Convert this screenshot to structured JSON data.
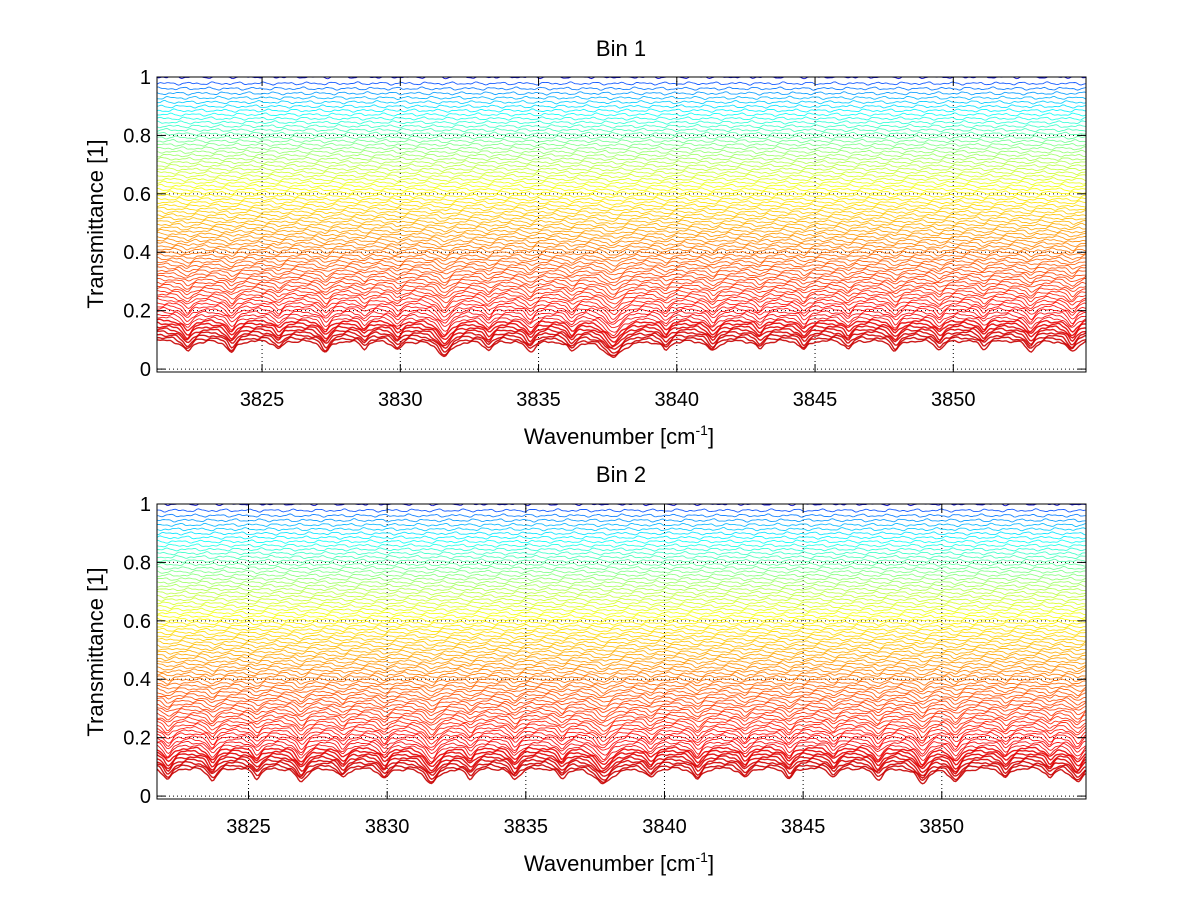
{
  "chart_data": [
    {
      "type": "line",
      "title": "Bin 1",
      "xlabel": "Wavenumber [cm",
      "xlabel_sup": "-1",
      "xlabel_end": "]",
      "ylabel": "Transmittance [1]",
      "xlim": [
        3821.2,
        3854.8
      ],
      "ylim": [
        -0.01,
        1.0
      ],
      "xticks": [
        3825,
        3830,
        3835,
        3840,
        3845,
        3850
      ],
      "xtick_labels": [
        "3825",
        "3830",
        "3835",
        "3840",
        "3845",
        "3850"
      ],
      "yticks": [
        0,
        0.2,
        0.4,
        0.6,
        0.8,
        1
      ],
      "ytick_labels": [
        "0",
        "0.2",
        "0.4",
        "0.6",
        "0.8",
        "1"
      ],
      "grid": true,
      "colormap": "jet (blue at transmittance ≈ 1, through cyan, green, yellow, to orange-red at ≈ 0)",
      "line_count": 80,
      "absorption_lines": [
        {
          "x": 3822.3,
          "depth": 0.55,
          "width": 0.18
        },
        {
          "x": 3823.9,
          "depth": 0.6,
          "width": 0.18
        },
        {
          "x": 3825.6,
          "depth": 0.4,
          "width": 0.16
        },
        {
          "x": 3827.3,
          "depth": 0.6,
          "width": 0.18
        },
        {
          "x": 3828.7,
          "depth": 0.35,
          "width": 0.15
        },
        {
          "x": 3829.9,
          "depth": 0.45,
          "width": 0.16
        },
        {
          "x": 3831.6,
          "depth": 0.9,
          "width": 0.25
        },
        {
          "x": 3833.2,
          "depth": 0.45,
          "width": 0.16
        },
        {
          "x": 3834.7,
          "depth": 0.55,
          "width": 0.18
        },
        {
          "x": 3836.2,
          "depth": 0.5,
          "width": 0.17
        },
        {
          "x": 3837.7,
          "depth": 1.0,
          "width": 0.32
        },
        {
          "x": 3839.6,
          "depth": 0.45,
          "width": 0.16
        },
        {
          "x": 3841.3,
          "depth": 0.55,
          "width": 0.18
        },
        {
          "x": 3843.0,
          "depth": 0.4,
          "width": 0.16
        },
        {
          "x": 3844.6,
          "depth": 0.45,
          "width": 0.16
        },
        {
          "x": 3846.2,
          "depth": 0.4,
          "width": 0.15
        },
        {
          "x": 3847.9,
          "depth": 0.5,
          "width": 0.17
        },
        {
          "x": 3849.5,
          "depth": 0.45,
          "width": 0.16
        },
        {
          "x": 3851.1,
          "depth": 0.4,
          "width": 0.15
        },
        {
          "x": 3852.8,
          "depth": 0.55,
          "width": 0.18
        },
        {
          "x": 3854.3,
          "depth": 0.6,
          "width": 0.18
        }
      ]
    },
    {
      "type": "line",
      "title": "Bin 2",
      "xlabel": "Wavenumber [cm",
      "xlabel_sup": "-1",
      "xlabel_end": "]",
      "ylabel": "Transmittance [1]",
      "xlim": [
        3821.7,
        3855.2
      ],
      "ylim": [
        -0.01,
        1.0
      ],
      "xticks": [
        3825,
        3830,
        3835,
        3840,
        3845,
        3850
      ],
      "xtick_labels": [
        "3825",
        "3830",
        "3835",
        "3840",
        "3845",
        "3850"
      ],
      "yticks": [
        0,
        0.2,
        0.4,
        0.6,
        0.8,
        1
      ],
      "ytick_labels": [
        "0",
        "0.2",
        "0.4",
        "0.6",
        "0.8",
        "1"
      ],
      "grid": true,
      "colormap": "jet (blue at transmittance ≈ 1, through cyan, green, yellow, to orange-red at ≈ 0)",
      "line_count": 80,
      "absorption_lines": [
        {
          "x": 3822.1,
          "depth": 0.6,
          "width": 0.18
        },
        {
          "x": 3823.7,
          "depth": 0.65,
          "width": 0.18
        },
        {
          "x": 3825.3,
          "depth": 0.5,
          "width": 0.17
        },
        {
          "x": 3826.9,
          "depth": 0.75,
          "width": 0.2
        },
        {
          "x": 3828.4,
          "depth": 0.5,
          "width": 0.17
        },
        {
          "x": 3829.9,
          "depth": 0.55,
          "width": 0.17
        },
        {
          "x": 3831.6,
          "depth": 0.9,
          "width": 0.25
        },
        {
          "x": 3833.0,
          "depth": 0.5,
          "width": 0.17
        },
        {
          "x": 3834.6,
          "depth": 0.6,
          "width": 0.18
        },
        {
          "x": 3836.3,
          "depth": 0.5,
          "width": 0.17
        },
        {
          "x": 3837.8,
          "depth": 0.95,
          "width": 0.3
        },
        {
          "x": 3839.5,
          "depth": 0.5,
          "width": 0.17
        },
        {
          "x": 3841.2,
          "depth": 0.6,
          "width": 0.18
        },
        {
          "x": 3842.9,
          "depth": 0.5,
          "width": 0.17
        },
        {
          "x": 3844.5,
          "depth": 0.55,
          "width": 0.17
        },
        {
          "x": 3846.1,
          "depth": 0.45,
          "width": 0.16
        },
        {
          "x": 3847.7,
          "depth": 0.6,
          "width": 0.18
        },
        {
          "x": 3849.3,
          "depth": 0.85,
          "width": 0.22
        },
        {
          "x": 3850.5,
          "depth": 0.75,
          "width": 0.2
        },
        {
          "x": 3852.3,
          "depth": 0.5,
          "width": 0.17
        },
        {
          "x": 3853.9,
          "depth": 0.45,
          "width": 0.16
        },
        {
          "x": 3854.9,
          "depth": 0.8,
          "width": 0.22
        }
      ]
    }
  ]
}
